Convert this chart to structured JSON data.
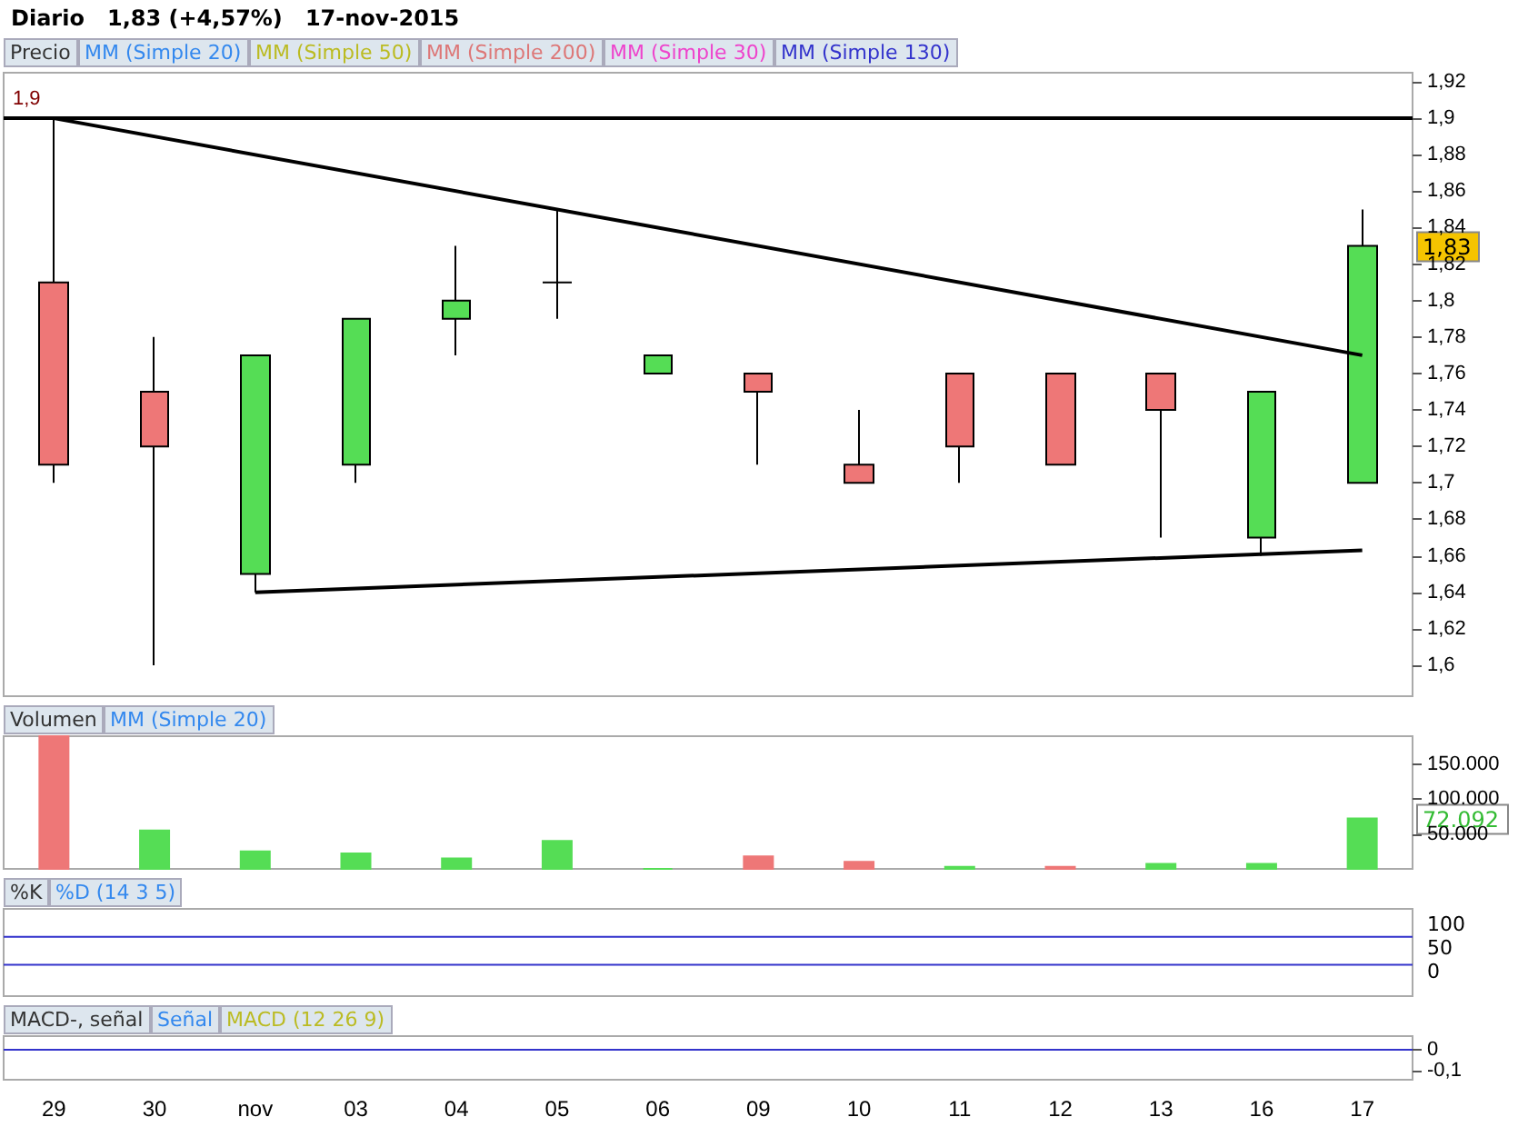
{
  "chart_data": [
    {
      "type": "candlestick",
      "title": "Diario   1,83 (+4,57%)   17-nov-2015",
      "categories": [
        "29",
        "30",
        "nov",
        "03",
        "04",
        "05",
        "06",
        "09",
        "10",
        "11",
        "12",
        "13",
        "16",
        "17"
      ],
      "ohlc": [
        [
          1.81,
          1.9,
          1.7,
          1.71
        ],
        [
          1.75,
          1.78,
          1.6,
          1.72
        ],
        [
          1.65,
          1.77,
          1.64,
          1.77
        ],
        [
          1.71,
          1.79,
          1.7,
          1.79
        ],
        [
          1.79,
          1.83,
          1.77,
          1.8
        ],
        [
          1.81,
          1.85,
          1.79,
          1.81
        ],
        [
          1.76,
          1.77,
          1.76,
          1.77
        ],
        [
          1.76,
          1.76,
          1.71,
          1.75
        ],
        [
          1.71,
          1.74,
          1.7,
          1.7
        ],
        [
          1.76,
          1.76,
          1.7,
          1.72
        ],
        [
          1.76,
          1.76,
          1.71,
          1.71
        ],
        [
          1.76,
          1.76,
          1.67,
          1.74
        ],
        [
          1.67,
          1.75,
          1.66,
          1.75
        ],
        [
          1.7,
          1.85,
          1.7,
          1.83
        ]
      ],
      "colors": [
        "#ee7777",
        "#ee7777",
        "#55dd55",
        "#55dd55",
        "#55dd55",
        "#000000",
        "#55dd55",
        "#ee7777",
        "#ee7777",
        "#ee7777",
        "#ee7777",
        "#ee7777",
        "#55dd55",
        "#55dd55"
      ],
      "series": [
        {
          "type": "line",
          "color": "#000000",
          "x": [
            "29",
            "17"
          ],
          "values": [
            1.9,
            1.77
          ]
        },
        {
          "type": "line",
          "color": "#000000",
          "x": [
            "nov",
            "17"
          ],
          "values": [
            1.64,
            1.663
          ]
        }
      ],
      "ylim": [
        1.583,
        1.925
      ],
      "yticks": [
        {
          "value": 1.6,
          "label": "1,6"
        },
        {
          "value": 1.62,
          "label": "1,62"
        },
        {
          "value": 1.64,
          "label": "1,64"
        },
        {
          "value": 1.66,
          "label": "1,66"
        },
        {
          "value": 1.68,
          "label": "1,68"
        },
        {
          "value": 1.7,
          "label": "1,7"
        },
        {
          "value": 1.72,
          "label": "1,72"
        },
        {
          "value": 1.74,
          "label": "1,74"
        },
        {
          "value": 1.76,
          "label": "1,76"
        },
        {
          "value": 1.78,
          "label": "1,78"
        },
        {
          "value": 1.8,
          "label": "1,8"
        },
        {
          "value": 1.82,
          "label": "1,82"
        },
        {
          "value": 1.84,
          "label": "1,84"
        },
        {
          "value": 1.86,
          "label": "1,86"
        },
        {
          "value": 1.88,
          "label": "1,88"
        },
        {
          "value": 1.9,
          "label": "1,9"
        },
        {
          "value": 1.92,
          "label": "1,92"
        }
      ],
      "ref_lines": [
        {
          "axis": "y",
          "value": 1.9,
          "label": "1,9",
          "color": "#000000"
        }
      ],
      "annotations": [
        "Precio",
        "MM (Simple 20)",
        "MM (Simple 50)",
        "MM (Simple 200)",
        "MM (Simple 30)",
        "MM (Simple 130)",
        "1,83"
      ],
      "grid": false,
      "tick_labels": "y"
    },
    {
      "type": "bar",
      "categories": [
        "29",
        "30",
        "nov",
        "03",
        "04",
        "05",
        "06",
        "09",
        "10",
        "11",
        "12",
        "13",
        "16",
        "17"
      ],
      "values": [
        190000,
        55000,
        25000,
        22000,
        15000,
        40000,
        0,
        18000,
        10000,
        3000,
        3000,
        7000,
        7000,
        72092
      ],
      "colors": [
        "#ee7777",
        "#55dd55",
        "#55dd55",
        "#55dd55",
        "#55dd55",
        "#55dd55",
        "#55dd55",
        "#ee7777",
        "#ee7777",
        "#55dd55",
        "#ee7777",
        "#55dd55",
        "#55dd55",
        "#55dd55"
      ],
      "ylim": [
        0,
        190000
      ],
      "yticks": [
        {
          "value": 50000,
          "label": "50.000"
        },
        {
          "value": 100000,
          "label": "100.000"
        },
        {
          "value": 150000,
          "label": "150.000"
        }
      ],
      "annotations": [
        "Volumen",
        "MM (Simple 20)",
        "72.092"
      ],
      "grid": false,
      "tick_labels": "y"
    },
    {
      "type": "other",
      "annotations": [
        "%K",
        "%D (14 3 5)",
        "100",
        "50",
        "0"
      ]
    },
    {
      "type": "line",
      "categories": [
        "29",
        "30",
        "nov",
        "03",
        "04",
        "05",
        "06",
        "09",
        "10",
        "11",
        "12",
        "13",
        "16",
        "17"
      ],
      "ylim": [
        -0.146,
        0.065
      ],
      "yticks": [
        {
          "value": -0.1,
          "label": "-0,1"
        },
        0
      ],
      "ref_lines": [
        {
          "axis": "y",
          "value": 0,
          "color": "#3333cc"
        }
      ],
      "annotations": [
        "MACD-, señal",
        "Señal",
        "MACD (12 26 9)"
      ],
      "grid": false
    }
  ]
}
